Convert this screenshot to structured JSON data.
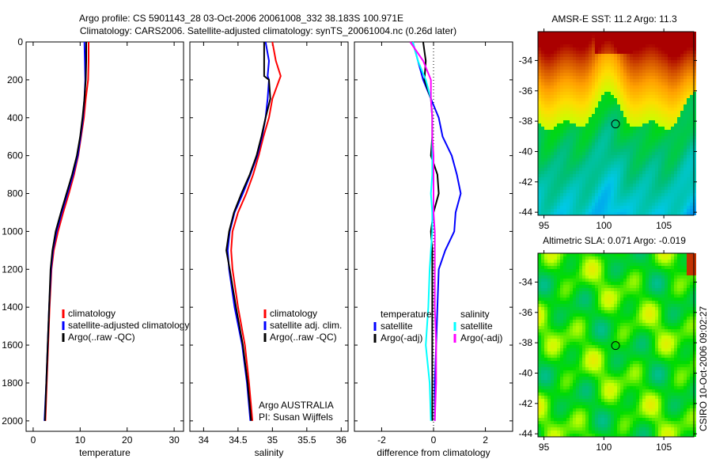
{
  "title_line1": "Argo profile: CS 5901143_28 03-Oct-2006 20061008_332 38.183S 100.971E",
  "title_line2": "Climatology: CARS2006. Satellite-adjusted climatology: synTS_20061004.nc (0.26d later)",
  "side_label": "CSIRO 10-Oct-2006 09:02:27",
  "chart_data": [
    {
      "type": "line",
      "id": "temperature",
      "xlabel": "temperature",
      "xlim": [
        -1.5,
        32
      ],
      "ylim": [
        0,
        2055
      ],
      "xticks": [
        0,
        10,
        20,
        30
      ],
      "yticks": [
        0,
        200,
        400,
        600,
        800,
        1000,
        1200,
        1400,
        1600,
        1800,
        2000
      ],
      "depth": [
        0,
        100,
        200,
        300,
        400,
        500,
        600,
        700,
        800,
        900,
        1000,
        1100,
        1200,
        1400,
        1600,
        1800,
        2000
      ],
      "series": [
        {
          "name": "climatology",
          "color": "#ff0000",
          "values": [
            11.8,
            11.8,
            11.7,
            11.2,
            10.8,
            10.2,
            9.6,
            8.7,
            7.6,
            6.4,
            5.3,
            4.4,
            3.9,
            3.5,
            3.2,
            2.9,
            2.6
          ]
        },
        {
          "name": "satellite-adjusted climatology",
          "color": "#0000ff",
          "values": [
            10.9,
            11.0,
            11.1,
            10.9,
            10.6,
            10.1,
            9.5,
            8.5,
            7.3,
            6.1,
            5.0,
            4.2,
            3.8,
            3.4,
            3.1,
            2.8,
            2.4
          ]
        },
        {
          "name": "Argo(..raw -QC)",
          "color": "#000000",
          "values": [
            11.3,
            11.3,
            11.2,
            10.9,
            10.5,
            10.0,
            9.3,
            8.3,
            7.1,
            5.9,
            4.8,
            4.1,
            3.7,
            3.4,
            3.1,
            2.8,
            2.5
          ]
        }
      ]
    },
    {
      "type": "line",
      "id": "salinity",
      "xlabel": "salinity",
      "xlim": [
        33.8,
        36.1
      ],
      "ylim": [
        0,
        2055
      ],
      "xticks": [
        34,
        34.5,
        35,
        35.5,
        36
      ],
      "yticks": [],
      "depth": [
        0,
        100,
        180,
        200,
        300,
        400,
        500,
        600,
        700,
        800,
        900,
        1000,
        1100,
        1200,
        1400,
        1600,
        1800,
        2000
      ],
      "series": [
        {
          "name": "climatology",
          "color": "#ff0000",
          "values": [
            35.0,
            35.05,
            35.12,
            35.1,
            35.0,
            34.95,
            34.87,
            34.8,
            34.72,
            34.62,
            34.5,
            34.42,
            34.4,
            34.42,
            34.5,
            34.6,
            34.66,
            34.71
          ]
        },
        {
          "name": "satellite adj. clim.",
          "color": "#0000ff",
          "values": [
            34.9,
            34.95,
            34.93,
            34.95,
            34.93,
            34.9,
            34.85,
            34.78,
            34.68,
            34.57,
            34.45,
            34.38,
            34.35,
            34.37,
            34.45,
            34.56,
            34.63,
            34.68
          ]
        },
        {
          "name": "Argo(..raw -QC)",
          "color": "#000000",
          "values": [
            34.88,
            34.88,
            34.88,
            34.95,
            34.97,
            34.9,
            34.84,
            34.77,
            34.67,
            34.55,
            34.44,
            34.37,
            34.33,
            34.38,
            34.47,
            34.57,
            34.64,
            34.69
          ]
        }
      ],
      "annotation": [
        "Argo AUSTRALIA",
        "PI: Susan Wijffels"
      ]
    },
    {
      "type": "line",
      "id": "difference",
      "xlabel": "difference from climatology",
      "xlim": [
        -3.05,
        3.05
      ],
      "ylim": [
        0,
        2055
      ],
      "xticks": [
        -2,
        0,
        2
      ],
      "yticks": [],
      "depth": [
        0,
        100,
        200,
        300,
        400,
        500,
        600,
        700,
        800,
        900,
        1000,
        1100,
        1200,
        1400,
        1600,
        1800,
        2000
      ],
      "legend_headers": [
        "temperature",
        "salinity"
      ],
      "series": [
        {
          "name": "satellite",
          "group": "temperature",
          "color": "#0000ff",
          "values": [
            -0.8,
            -0.6,
            -0.4,
            -0.1,
            0.2,
            0.35,
            0.7,
            0.9,
            1.05,
            0.85,
            0.8,
            0.45,
            0.2,
            0.15,
            0.1,
            0.05,
            0.05
          ]
        },
        {
          "name": "Argo(-adj)",
          "group": "temperature",
          "color": "#000000",
          "values": [
            -0.4,
            -0.3,
            -0.35,
            -0.1,
            -0.05,
            -0.05,
            -0.1,
            0.15,
            0.2,
            0.0,
            -0.1,
            -0.05,
            -0.05,
            -0.05,
            -0.05,
            -0.05,
            -0.05
          ]
        },
        {
          "name": "satellite",
          "group": "salinity",
          "color": "#00ffff",
          "values": [
            -0.8,
            -0.6,
            -0.3,
            -0.1,
            -0.05,
            -0.05,
            -0.05,
            -0.05,
            -0.1,
            -0.05,
            -0.05,
            -0.1,
            -0.15,
            -0.2,
            -0.3,
            -0.15,
            -0.1
          ]
        },
        {
          "name": "Argo(-adj)",
          "group": "salinity",
          "color": "#ff00ff",
          "values": [
            -0.9,
            -0.4,
            -0.1,
            -0.1,
            -0.05,
            -0.05,
            0.0,
            0.0,
            0.0,
            0.0,
            0.05,
            0.05,
            0.05,
            0.05,
            0.1,
            0.1,
            0.05
          ]
        }
      ]
    },
    {
      "type": "heatmap",
      "id": "sst",
      "title": "AMSR-E SST: 11.2 Argo: 11.3",
      "xlim": [
        94.5,
        107.5
      ],
      "ylim": [
        -44.2,
        -32.1
      ],
      "xticks": [
        95,
        100,
        105
      ],
      "yticks": [
        -34,
        -36,
        -38,
        -40,
        -42,
        -44
      ],
      "marker": [
        100.971,
        -38.183
      ]
    },
    {
      "type": "heatmap",
      "id": "sla",
      "title": "Altimetric SLA: 0.071 Argo: -0.019",
      "xlim": [
        94.5,
        107.5
      ],
      "ylim": [
        -44.2,
        -32.1
      ],
      "xticks": [
        95,
        100,
        105
      ],
      "yticks": [
        -34,
        -36,
        -38,
        -40,
        -42,
        -44
      ],
      "marker": [
        100.971,
        -38.183
      ]
    }
  ]
}
